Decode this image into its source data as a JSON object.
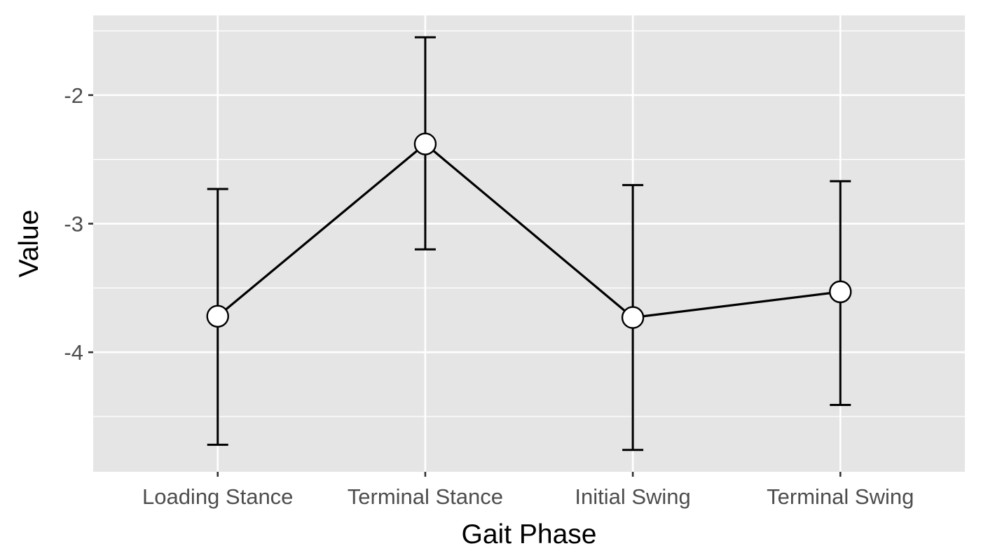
{
  "chart_data": {
    "type": "line",
    "title": "",
    "xlabel": "Gait Phase",
    "ylabel": "Value",
    "categories": [
      "Loading Stance",
      "Terminal Stance",
      "Initial Swing",
      "Terminal Swing"
    ],
    "series": [
      {
        "values": [
          -3.72,
          -2.38,
          -3.73,
          -3.53
        ],
        "lower": [
          -4.72,
          -3.2,
          -4.76,
          -4.41
        ],
        "upper": [
          -2.73,
          -1.55,
          -2.7,
          -2.67
        ]
      }
    ],
    "ylim": [
      -4.93,
      -1.38
    ],
    "yticks": [
      -4,
      -3,
      -2
    ],
    "ytick_labels": [
      "-4",
      "-3",
      "-2"
    ],
    "y_minor_ticks": [
      -4.5,
      -3.5,
      -2.5,
      -1.5
    ],
    "grid": true,
    "legend": "none",
    "colors": {
      "panel": "#e5e5e5",
      "grid": "#ffffff",
      "line": "#000000",
      "point_fill": "#ffffff",
      "tick_text": "#4d4d4d",
      "tick_mark": "#333333"
    }
  }
}
